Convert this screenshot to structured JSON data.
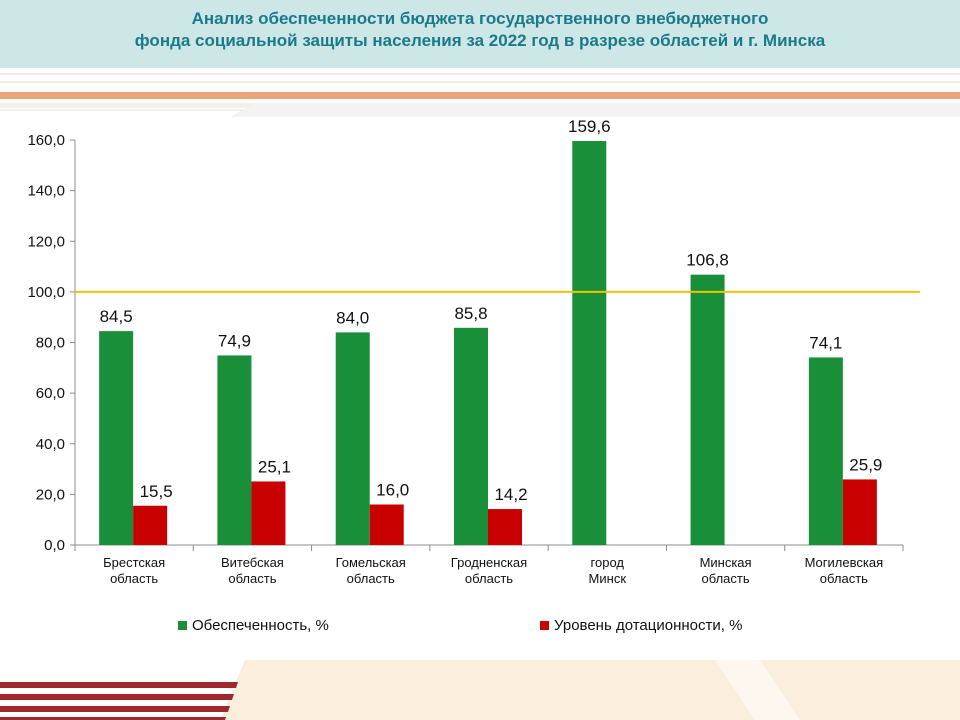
{
  "title": {
    "line1": "Анализ обеспеченности бюджета государственного внебюджетного",
    "line2": "фонда социальной защиты населения за 2022 год в разрезе областей  и г. Минска"
  },
  "colors": {
    "title_bg": "#cde6e6",
    "title_text": "#1b7a8a",
    "series_1": "#1a8f3a",
    "series_2": "#c80000",
    "reference_line": "#f2c200",
    "decor_orange": "#e8a57a",
    "decor_red": "#a0272d",
    "decor_beige": "#fbeedd"
  },
  "chart_data": {
    "type": "bar",
    "categories": [
      [
        "Брестская",
        "область"
      ],
      [
        "Витебская",
        "область"
      ],
      [
        "Гомельская",
        "область"
      ],
      [
        "Гродненская",
        "область"
      ],
      [
        "город",
        "Минск"
      ],
      [
        "Минская",
        "область"
      ],
      [
        "Могилевская",
        "область"
      ]
    ],
    "series": [
      {
        "name": "Обеспеченность, %",
        "color": "#1a8f3a",
        "values": [
          84.5,
          74.9,
          84.0,
          85.8,
          159.6,
          106.8,
          74.1
        ],
        "labels": [
          "84,5",
          "74,9",
          "84,0",
          "85,8",
          "159,6",
          "106,8",
          "74,1"
        ]
      },
      {
        "name": "Уровень дотационности, %",
        "color": "#c80000",
        "values": [
          15.5,
          25.1,
          16.0,
          14.2,
          null,
          null,
          25.9
        ],
        "labels": [
          "15,5",
          "25,1",
          "16,0",
          "14,2",
          "",
          "",
          "25,9"
        ]
      }
    ],
    "ylim": [
      0,
      160
    ],
    "yticks": [
      0,
      20,
      40,
      60,
      80,
      100,
      120,
      140,
      160
    ],
    "ytick_labels": [
      "0,0",
      "20,0",
      "40,0",
      "60,0",
      "80,0",
      "100,0",
      "120,0",
      "140,0",
      "160,0"
    ],
    "reference_line": 100,
    "grid": false,
    "legend_position": "bottom"
  }
}
